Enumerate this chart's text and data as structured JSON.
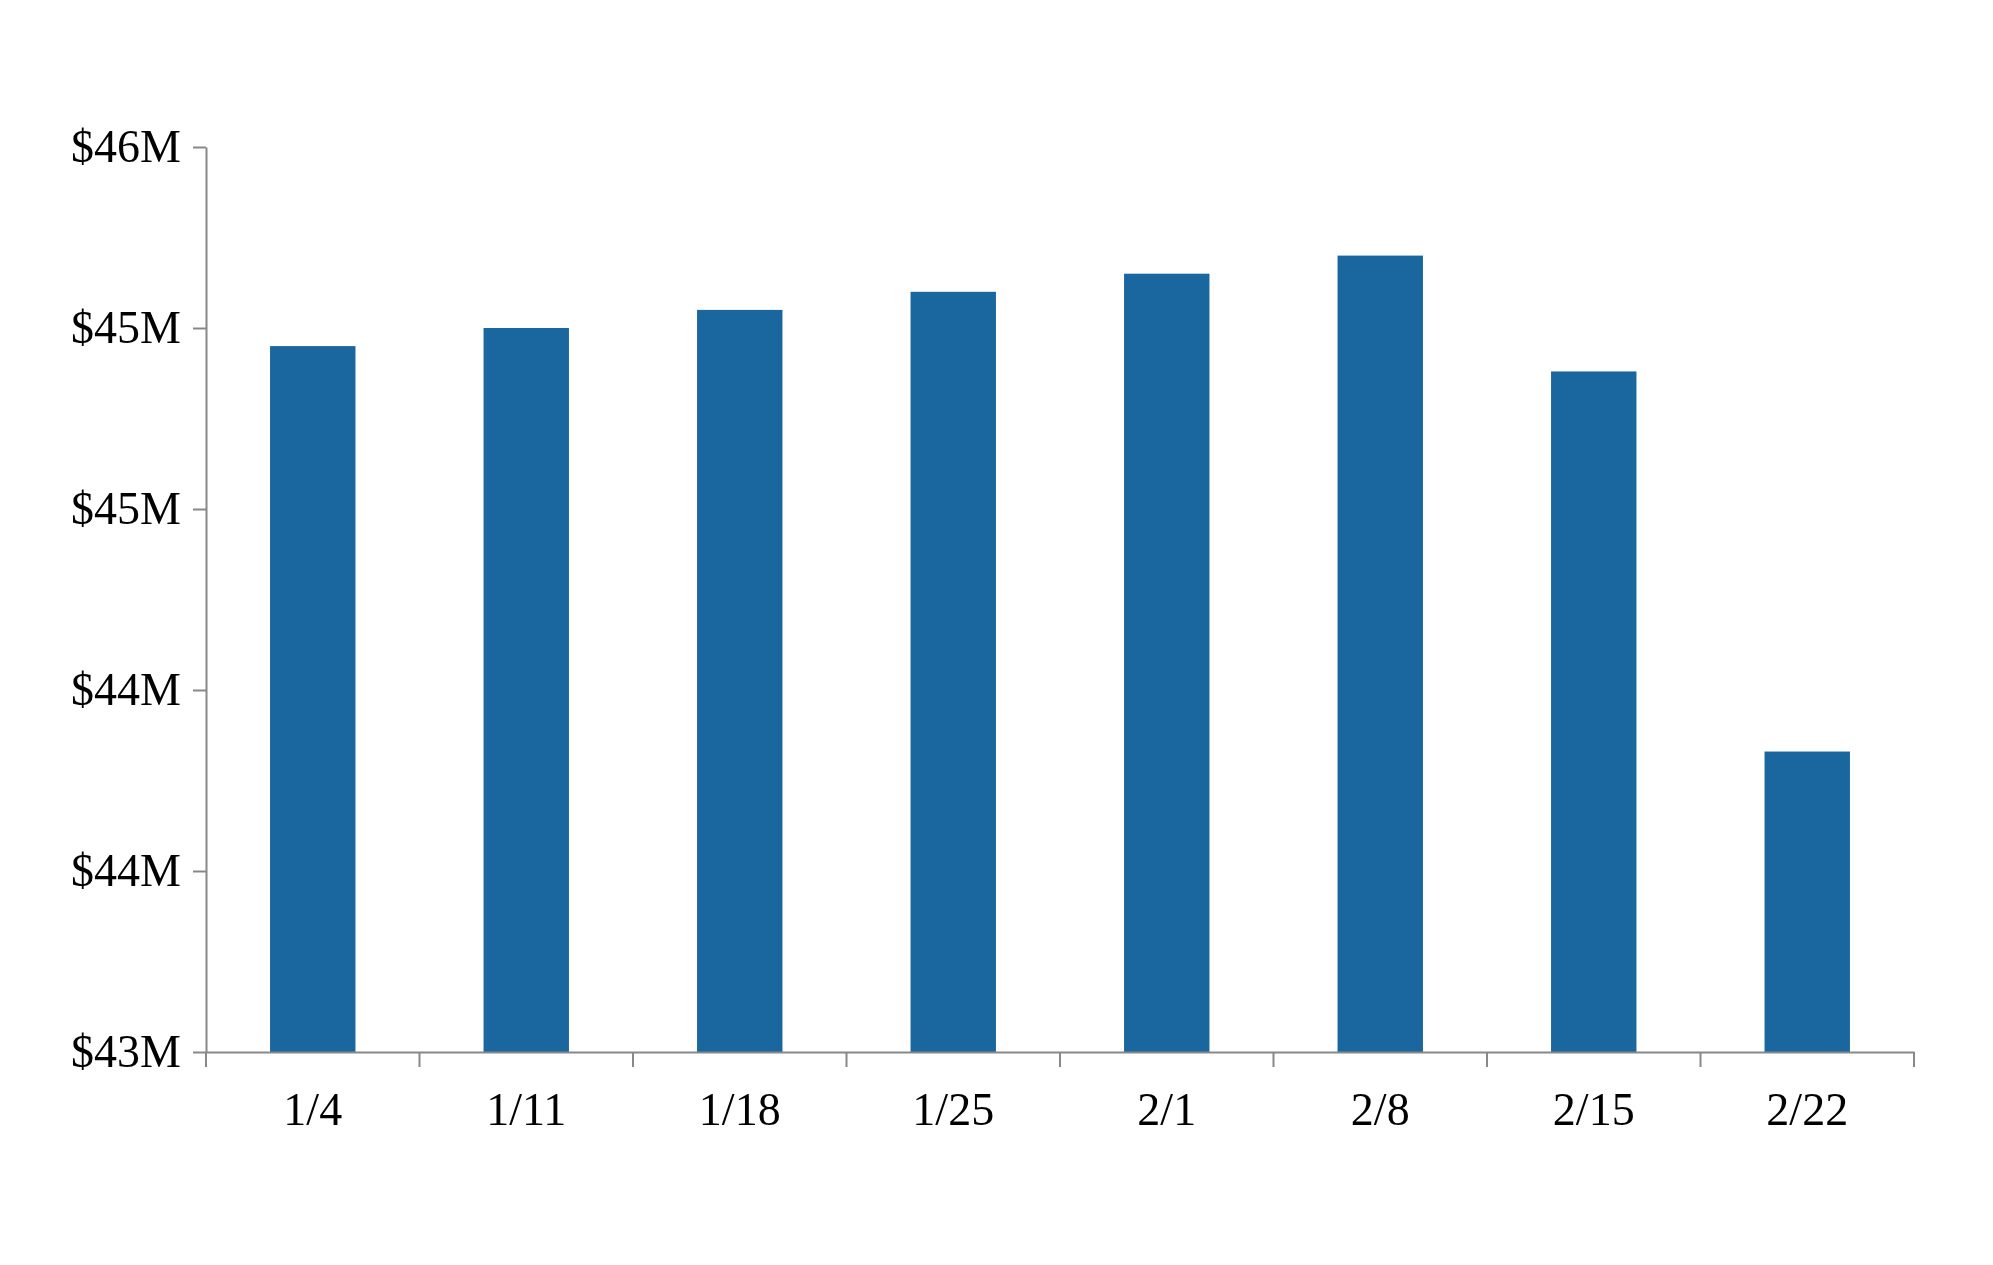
{
  "chart_data": {
    "type": "bar",
    "categories": [
      "1/4",
      "1/11",
      "1/18",
      "1/25",
      "2/1",
      "2/8",
      "2/15",
      "2/22"
    ],
    "values": [
      44.95,
      45.0,
      45.05,
      45.1,
      45.15,
      45.2,
      44.88,
      43.83
    ],
    "color": "#1a67a0",
    "ylim": [
      43,
      45.5
    ],
    "yticks": [
      {
        "value": 43,
        "label": "$43M"
      },
      {
        "value": 43.5,
        "label": "$44M"
      },
      {
        "value": 44,
        "label": "$44M"
      },
      {
        "value": 44.5,
        "label": "$45M"
      },
      {
        "value": 45,
        "label": "$45M"
      },
      {
        "value": 45.5,
        "label": "$46M"
      }
    ],
    "grid": false
  }
}
